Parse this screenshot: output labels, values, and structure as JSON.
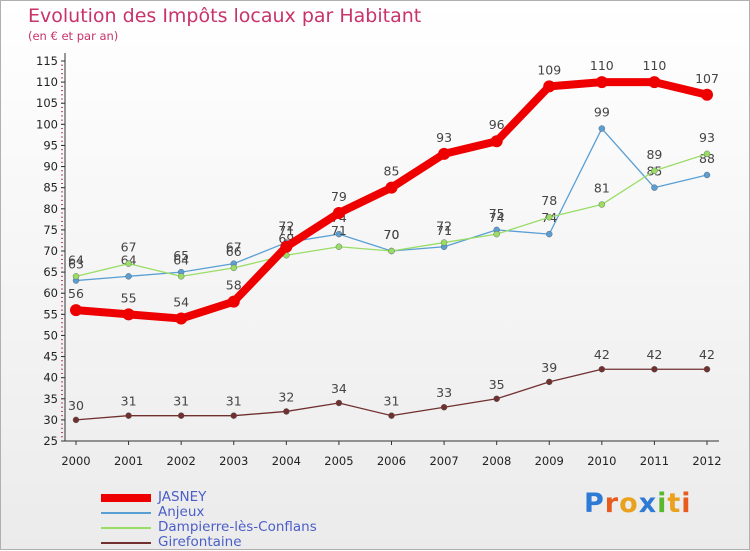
{
  "header": {
    "title": "Evolution des Impôts locaux par Habitant",
    "subtitle": "(en € et par an)"
  },
  "chart_data": {
    "type": "line",
    "title": "Evolution des Impôts locaux par Habitant",
    "subtitle": "(en € et par an)",
    "x": [
      "2000",
      "2001",
      "2002",
      "2003",
      "2004",
      "2005",
      "2006",
      "2007",
      "2008",
      "2009",
      "2010",
      "2011",
      "2012"
    ],
    "ylim": [
      25,
      115
    ],
    "yticks": [
      25,
      30,
      35,
      40,
      45,
      50,
      55,
      60,
      65,
      70,
      75,
      80,
      85,
      90,
      95,
      100,
      105,
      110,
      115
    ],
    "grid": false,
    "legend_position": "bottom-left",
    "series": [
      {
        "name": "JASNEY",
        "color": "#ee0000",
        "values": [
          56,
          55,
          54,
          58,
          71,
          79,
          85,
          93,
          96,
          109,
          110,
          110,
          107
        ]
      },
      {
        "name": "Anjeux",
        "color": "#5a9fd4",
        "values": [
          63,
          64,
          65,
          67,
          72,
          74,
          70,
          71,
          75,
          74,
          99,
          85,
          88
        ]
      },
      {
        "name": "Dampierre-lès-Conflans",
        "color": "#99dd66",
        "values": [
          64,
          67,
          64,
          66,
          69,
          71,
          70,
          72,
          74,
          78,
          81,
          89,
          93
        ]
      },
      {
        "name": "Girefontaine",
        "color": "#703030",
        "values": [
          30,
          31,
          31,
          31,
          32,
          34,
          31,
          33,
          35,
          39,
          42,
          42,
          42
        ]
      }
    ]
  },
  "legend": {
    "items": [
      {
        "label": "JASNEY"
      },
      {
        "label": "Anjeux"
      },
      {
        "label": "Dampierre-lès-Conflans"
      },
      {
        "label": "Girefontaine"
      }
    ]
  },
  "logo": {
    "text": "Proxiti",
    "letter_colors": [
      "#2e7bd6",
      "#e85b1e",
      "#e8a21e",
      "#2e7bd6",
      "#58b82e",
      "#e8a21e",
      "#e85b1e"
    ]
  }
}
